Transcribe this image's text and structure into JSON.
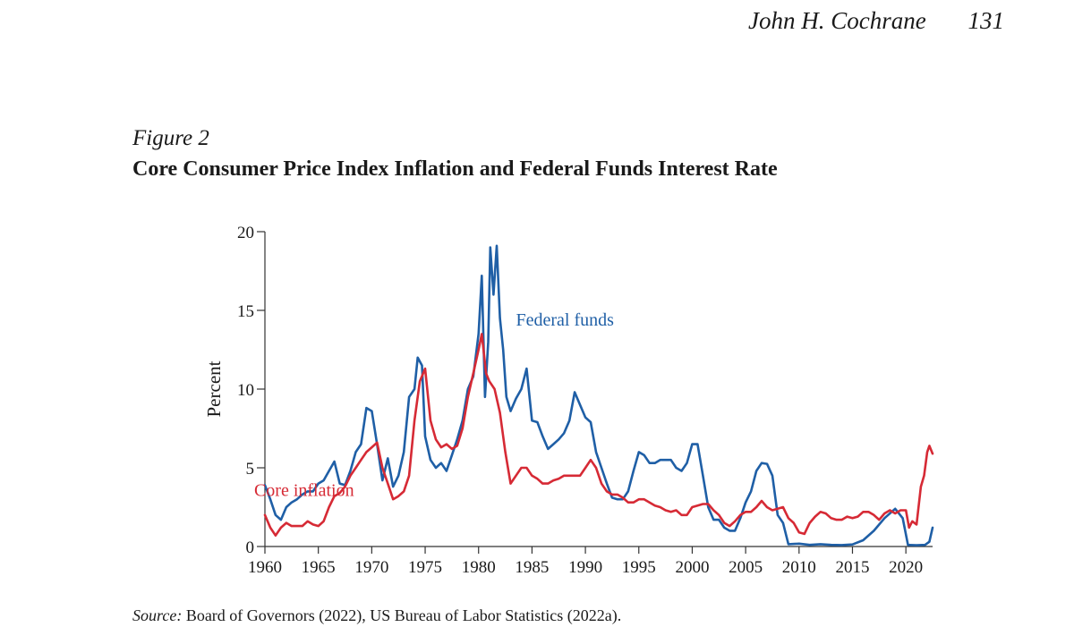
{
  "header": {
    "author": "John H. Cochrane",
    "page_number": "131"
  },
  "figure": {
    "label": "Figure 2",
    "title": "Core Consumer Price Index Inflation and Federal Funds Interest Rate"
  },
  "source": {
    "label": "Source:",
    "text": " Board of Governors (2022), US Bureau of Labor Statistics (2022a)."
  },
  "chart_data": {
    "type": "line",
    "title": "Core Consumer Price Index Inflation and Federal Funds Interest Rate",
    "xlabel": "",
    "ylabel": "Percent",
    "xlim": [
      1960,
      2022.5
    ],
    "ylim": [
      0,
      20
    ],
    "x_ticks": [
      1960,
      1965,
      1970,
      1975,
      1980,
      1985,
      1990,
      1995,
      2000,
      2005,
      2010,
      2015,
      2020
    ],
    "y_ticks": [
      0,
      5,
      10,
      15,
      20
    ],
    "grid": false,
    "series": [
      {
        "name": "Federal funds",
        "color": "#1f5fa6",
        "label_anchor": [
          1983,
          14.5
        ],
        "points": [
          [
            1960.0,
            3.9
          ],
          [
            1960.5,
            3.0
          ],
          [
            1961.0,
            2.0
          ],
          [
            1961.5,
            1.7
          ],
          [
            1962.0,
            2.5
          ],
          [
            1962.5,
            2.8
          ],
          [
            1963.0,
            3.0
          ],
          [
            1963.5,
            3.3
          ],
          [
            1964.0,
            3.5
          ],
          [
            1964.5,
            3.5
          ],
          [
            1965.0,
            4.0
          ],
          [
            1965.5,
            4.2
          ],
          [
            1966.0,
            4.8
          ],
          [
            1966.5,
            5.4
          ],
          [
            1967.0,
            4.0
          ],
          [
            1967.5,
            3.9
          ],
          [
            1968.0,
            4.8
          ],
          [
            1968.5,
            6.0
          ],
          [
            1969.0,
            6.5
          ],
          [
            1969.5,
            8.8
          ],
          [
            1970.0,
            8.6
          ],
          [
            1970.5,
            6.5
          ],
          [
            1971.0,
            4.2
          ],
          [
            1971.5,
            5.6
          ],
          [
            1972.0,
            3.8
          ],
          [
            1972.5,
            4.5
          ],
          [
            1973.0,
            6.0
          ],
          [
            1973.5,
            9.5
          ],
          [
            1974.0,
            10.0
          ],
          [
            1974.3,
            12.0
          ],
          [
            1974.7,
            11.5
          ],
          [
            1975.0,
            7.0
          ],
          [
            1975.5,
            5.5
          ],
          [
            1976.0,
            5.0
          ],
          [
            1976.5,
            5.3
          ],
          [
            1977.0,
            4.8
          ],
          [
            1977.5,
            5.8
          ],
          [
            1978.0,
            6.8
          ],
          [
            1978.5,
            8.0
          ],
          [
            1979.0,
            10.0
          ],
          [
            1979.5,
            10.8
          ],
          [
            1980.0,
            13.5
          ],
          [
            1980.3,
            17.2
          ],
          [
            1980.6,
            9.5
          ],
          [
            1980.9,
            13.0
          ],
          [
            1981.1,
            19.0
          ],
          [
            1981.4,
            16.0
          ],
          [
            1981.7,
            19.1
          ],
          [
            1982.0,
            14.5
          ],
          [
            1982.3,
            12.5
          ],
          [
            1982.6,
            9.5
          ],
          [
            1983.0,
            8.6
          ],
          [
            1983.5,
            9.4
          ],
          [
            1984.0,
            10.0
          ],
          [
            1984.5,
            11.3
          ],
          [
            1985.0,
            8.0
          ],
          [
            1985.5,
            7.9
          ],
          [
            1986.0,
            7.0
          ],
          [
            1986.5,
            6.2
          ],
          [
            1987.0,
            6.5
          ],
          [
            1987.5,
            6.8
          ],
          [
            1988.0,
            7.2
          ],
          [
            1988.5,
            8.0
          ],
          [
            1989.0,
            9.8
          ],
          [
            1989.5,
            9.0
          ],
          [
            1990.0,
            8.2
          ],
          [
            1990.5,
            7.9
          ],
          [
            1991.0,
            6.0
          ],
          [
            1991.5,
            5.0
          ],
          [
            1992.0,
            4.0
          ],
          [
            1992.5,
            3.1
          ],
          [
            1993.0,
            3.0
          ],
          [
            1993.5,
            3.0
          ],
          [
            1994.0,
            3.5
          ],
          [
            1994.5,
            4.8
          ],
          [
            1995.0,
            6.0
          ],
          [
            1995.5,
            5.8
          ],
          [
            1996.0,
            5.3
          ],
          [
            1996.5,
            5.3
          ],
          [
            1997.0,
            5.5
          ],
          [
            1997.5,
            5.5
          ],
          [
            1998.0,
            5.5
          ],
          [
            1998.5,
            5.0
          ],
          [
            1999.0,
            4.8
          ],
          [
            1999.5,
            5.3
          ],
          [
            2000.0,
            6.5
          ],
          [
            2000.5,
            6.5
          ],
          [
            2001.0,
            4.5
          ],
          [
            2001.5,
            2.5
          ],
          [
            2002.0,
            1.7
          ],
          [
            2002.5,
            1.7
          ],
          [
            2003.0,
            1.2
          ],
          [
            2003.5,
            1.0
          ],
          [
            2004.0,
            1.0
          ],
          [
            2004.5,
            1.8
          ],
          [
            2005.0,
            2.8
          ],
          [
            2005.5,
            3.5
          ],
          [
            2006.0,
            4.8
          ],
          [
            2006.5,
            5.3
          ],
          [
            2007.0,
            5.25
          ],
          [
            2007.5,
            4.5
          ],
          [
            2008.0,
            2.0
          ],
          [
            2008.5,
            1.5
          ],
          [
            2009.0,
            0.15
          ],
          [
            2010.0,
            0.18
          ],
          [
            2011.0,
            0.1
          ],
          [
            2012.0,
            0.15
          ],
          [
            2013.0,
            0.1
          ],
          [
            2014.0,
            0.09
          ],
          [
            2015.0,
            0.13
          ],
          [
            2016.0,
            0.4
          ],
          [
            2017.0,
            1.0
          ],
          [
            2018.0,
            1.8
          ],
          [
            2019.0,
            2.4
          ],
          [
            2019.7,
            1.8
          ],
          [
            2020.2,
            0.1
          ],
          [
            2021.0,
            0.08
          ],
          [
            2021.8,
            0.1
          ],
          [
            2022.2,
            0.3
          ],
          [
            2022.5,
            1.2
          ]
        ]
      },
      {
        "name": "Core inflation",
        "color": "#d62a35",
        "label_anchor": [
          1960.5,
          3.2
        ],
        "points": [
          [
            1960.0,
            2.0
          ],
          [
            1960.5,
            1.2
          ],
          [
            1961.0,
            0.7
          ],
          [
            1961.5,
            1.2
          ],
          [
            1962.0,
            1.5
          ],
          [
            1962.5,
            1.3
          ],
          [
            1963.0,
            1.3
          ],
          [
            1963.5,
            1.3
          ],
          [
            1964.0,
            1.6
          ],
          [
            1964.5,
            1.4
          ],
          [
            1965.0,
            1.3
          ],
          [
            1965.5,
            1.6
          ],
          [
            1966.0,
            2.5
          ],
          [
            1966.5,
            3.2
          ],
          [
            1967.0,
            3.4
          ],
          [
            1967.5,
            3.8
          ],
          [
            1968.0,
            4.5
          ],
          [
            1968.5,
            5.0
          ],
          [
            1969.0,
            5.5
          ],
          [
            1969.5,
            6.0
          ],
          [
            1970.0,
            6.3
          ],
          [
            1970.5,
            6.6
          ],
          [
            1971.0,
            5.0
          ],
          [
            1971.5,
            4.0
          ],
          [
            1972.0,
            3.0
          ],
          [
            1972.5,
            3.2
          ],
          [
            1973.0,
            3.5
          ],
          [
            1973.5,
            4.5
          ],
          [
            1974.0,
            8.0
          ],
          [
            1974.5,
            10.5
          ],
          [
            1975.0,
            11.3
          ],
          [
            1975.5,
            8.0
          ],
          [
            1976.0,
            6.8
          ],
          [
            1976.5,
            6.3
          ],
          [
            1977.0,
            6.5
          ],
          [
            1977.5,
            6.2
          ],
          [
            1978.0,
            6.4
          ],
          [
            1978.5,
            7.5
          ],
          [
            1979.0,
            9.5
          ],
          [
            1979.5,
            11.0
          ],
          [
            1980.0,
            12.5
          ],
          [
            1980.3,
            13.5
          ],
          [
            1980.7,
            11.0
          ],
          [
            1981.0,
            10.5
          ],
          [
            1981.5,
            10.0
          ],
          [
            1982.0,
            8.5
          ],
          [
            1982.5,
            6.0
          ],
          [
            1983.0,
            4.0
          ],
          [
            1983.5,
            4.5
          ],
          [
            1984.0,
            5.0
          ],
          [
            1984.5,
            5.0
          ],
          [
            1985.0,
            4.5
          ],
          [
            1985.5,
            4.3
          ],
          [
            1986.0,
            4.0
          ],
          [
            1986.5,
            4.0
          ],
          [
            1987.0,
            4.2
          ],
          [
            1987.5,
            4.3
          ],
          [
            1988.0,
            4.5
          ],
          [
            1988.5,
            4.5
          ],
          [
            1989.0,
            4.5
          ],
          [
            1989.5,
            4.5
          ],
          [
            1990.0,
            5.0
          ],
          [
            1990.5,
            5.5
          ],
          [
            1991.0,
            5.0
          ],
          [
            1991.5,
            4.0
          ],
          [
            1992.0,
            3.5
          ],
          [
            1992.5,
            3.3
          ],
          [
            1993.0,
            3.3
          ],
          [
            1993.5,
            3.1
          ],
          [
            1994.0,
            2.8
          ],
          [
            1994.5,
            2.8
          ],
          [
            1995.0,
            3.0
          ],
          [
            1995.5,
            3.0
          ],
          [
            1996.0,
            2.8
          ],
          [
            1996.5,
            2.6
          ],
          [
            1997.0,
            2.5
          ],
          [
            1997.5,
            2.3
          ],
          [
            1998.0,
            2.2
          ],
          [
            1998.5,
            2.3
          ],
          [
            1999.0,
            2.0
          ],
          [
            1999.5,
            2.0
          ],
          [
            2000.0,
            2.5
          ],
          [
            2000.5,
            2.6
          ],
          [
            2001.0,
            2.7
          ],
          [
            2001.5,
            2.7
          ],
          [
            2002.0,
            2.3
          ],
          [
            2002.5,
            2.0
          ],
          [
            2003.0,
            1.5
          ],
          [
            2003.5,
            1.3
          ],
          [
            2004.0,
            1.6
          ],
          [
            2004.5,
            2.0
          ],
          [
            2005.0,
            2.2
          ],
          [
            2005.5,
            2.2
          ],
          [
            2006.0,
            2.5
          ],
          [
            2006.5,
            2.9
          ],
          [
            2007.0,
            2.5
          ],
          [
            2007.5,
            2.3
          ],
          [
            2008.0,
            2.4
          ],
          [
            2008.5,
            2.5
          ],
          [
            2009.0,
            1.8
          ],
          [
            2009.5,
            1.5
          ],
          [
            2010.0,
            0.9
          ],
          [
            2010.5,
            0.8
          ],
          [
            2011.0,
            1.5
          ],
          [
            2011.5,
            1.9
          ],
          [
            2012.0,
            2.2
          ],
          [
            2012.5,
            2.1
          ],
          [
            2013.0,
            1.8
          ],
          [
            2013.5,
            1.7
          ],
          [
            2014.0,
            1.7
          ],
          [
            2014.5,
            1.9
          ],
          [
            2015.0,
            1.8
          ],
          [
            2015.5,
            1.9
          ],
          [
            2016.0,
            2.2
          ],
          [
            2016.5,
            2.2
          ],
          [
            2017.0,
            2.0
          ],
          [
            2017.5,
            1.7
          ],
          [
            2018.0,
            2.1
          ],
          [
            2018.5,
            2.3
          ],
          [
            2019.0,
            2.1
          ],
          [
            2019.5,
            2.3
          ],
          [
            2020.0,
            2.3
          ],
          [
            2020.3,
            1.2
          ],
          [
            2020.6,
            1.6
          ],
          [
            2021.0,
            1.4
          ],
          [
            2021.4,
            3.8
          ],
          [
            2021.7,
            4.5
          ],
          [
            2022.0,
            6.0
          ],
          [
            2022.2,
            6.4
          ],
          [
            2022.5,
            5.9
          ]
        ]
      }
    ]
  }
}
